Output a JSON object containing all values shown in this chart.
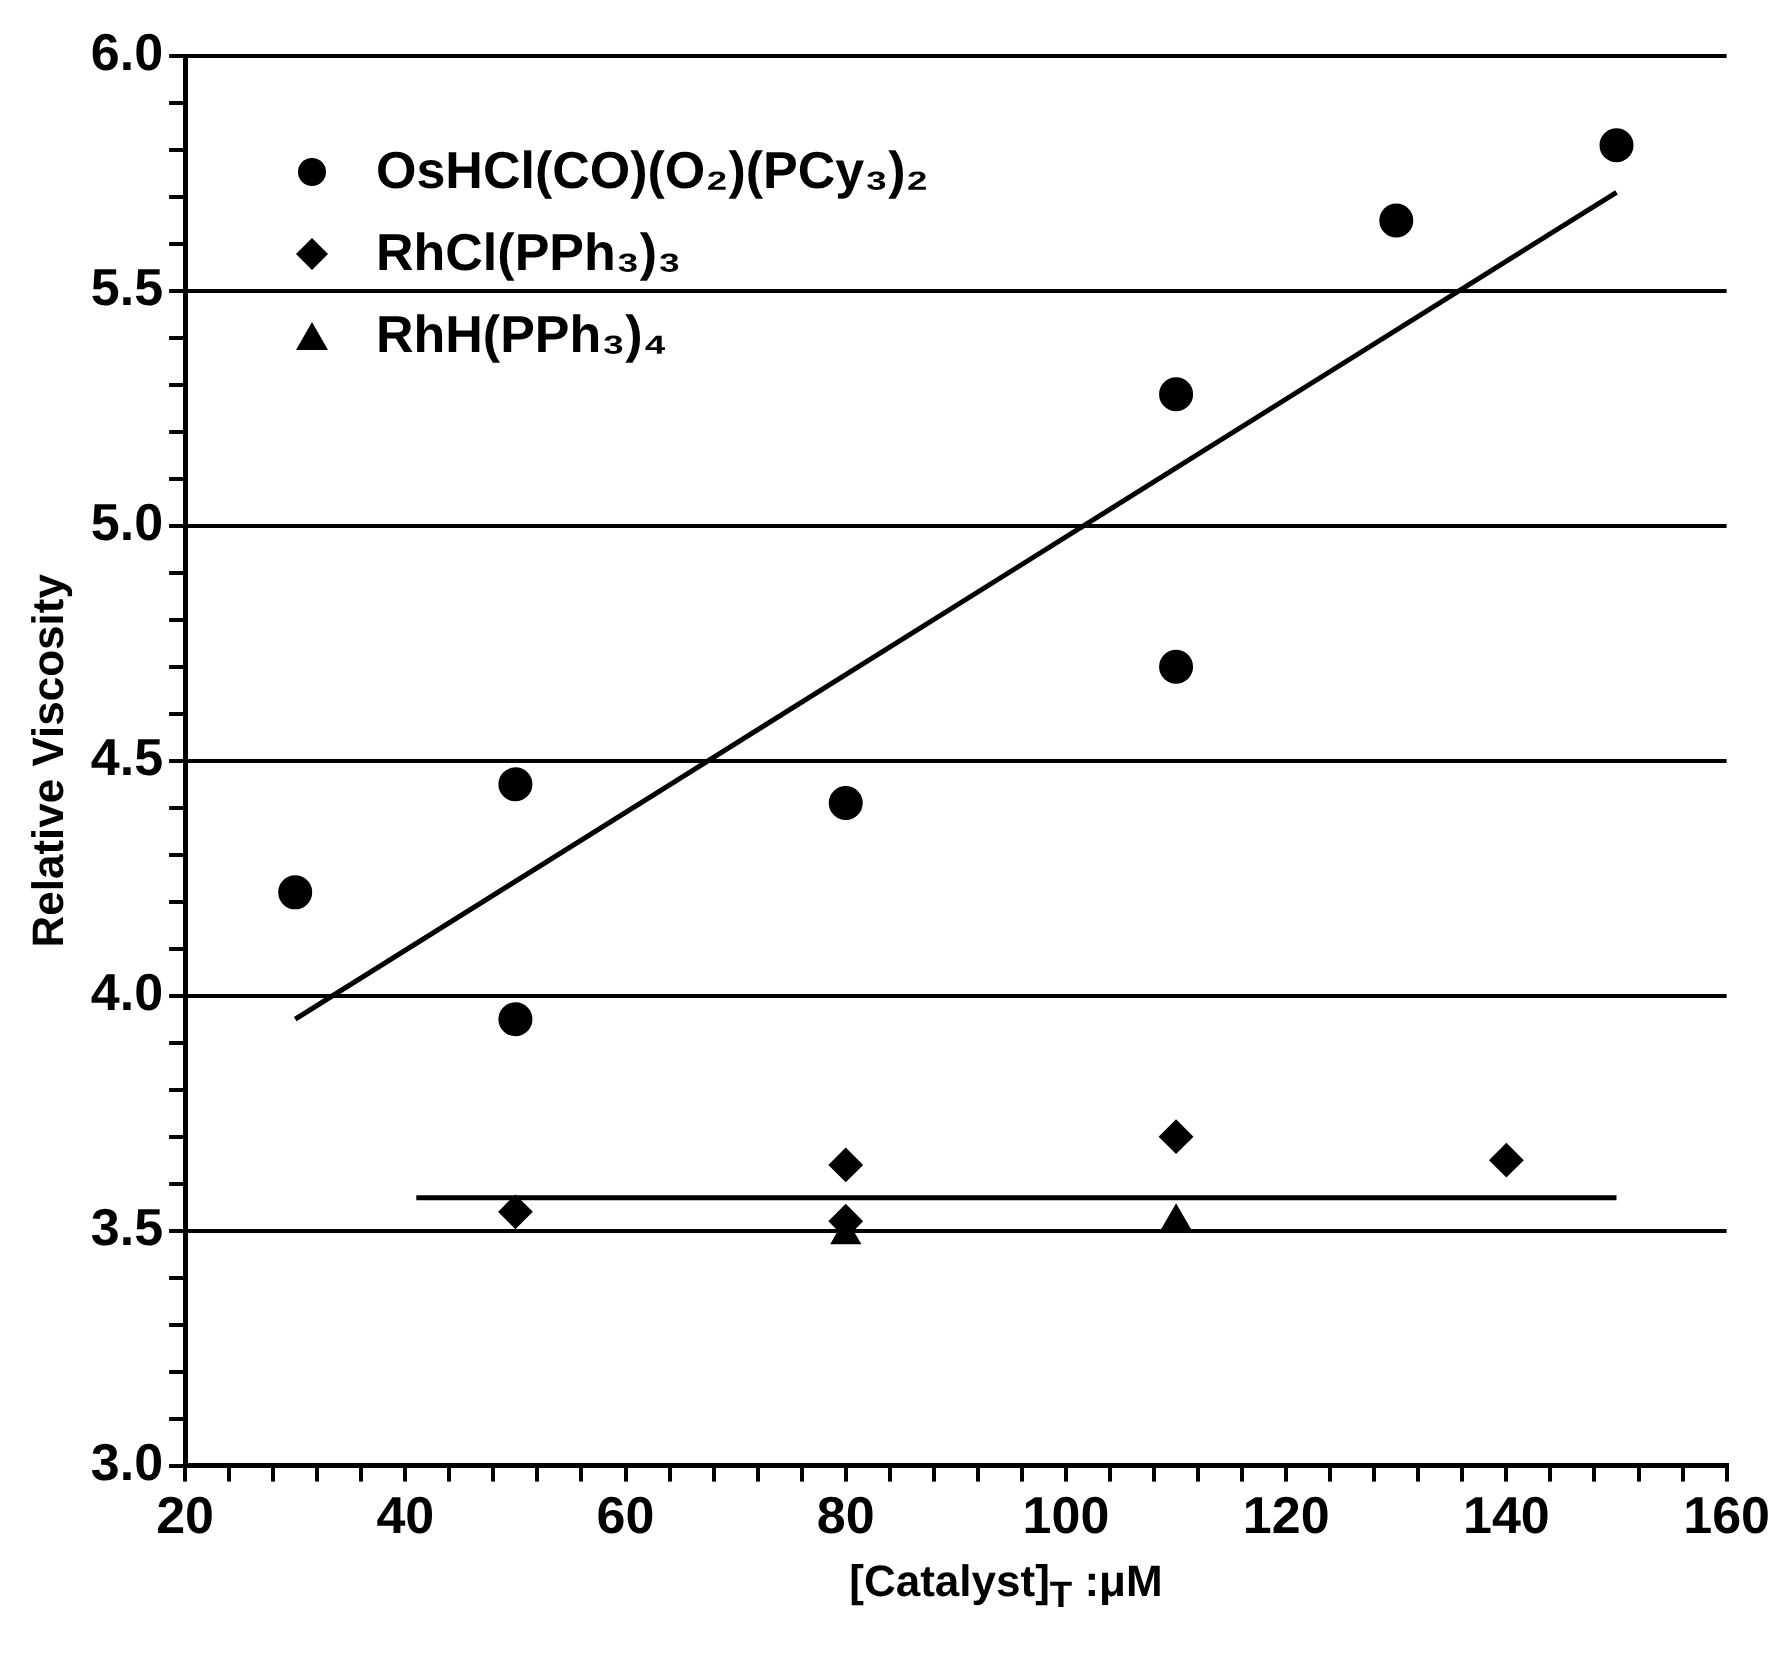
{
  "chart_data": {
    "type": "scatter",
    "xlabel": "[Catalyst]$_{T}$ :μM",
    "ylabel": "Relative Viscosity",
    "xlim": [
      20,
      160
    ],
    "ylim": [
      3.0,
      6.0
    ],
    "xticks": [
      20,
      {
        "value": 24,
        "label": null
      },
      {
        "value": 28,
        "label": null
      },
      {
        "value": 32,
        "label": null
      },
      {
        "value": 36,
        "label": null
      },
      40,
      {
        "value": 44,
        "label": null
      },
      {
        "value": 48,
        "label": null
      },
      {
        "value": 52,
        "label": null
      },
      {
        "value": 56,
        "label": null
      },
      60,
      {
        "value": 64,
        "label": null
      },
      {
        "value": 68,
        "label": null
      },
      {
        "value": 72,
        "label": null
      },
      {
        "value": 76,
        "label": null
      },
      80,
      {
        "value": 84,
        "label": null
      },
      {
        "value": 88,
        "label": null
      },
      {
        "value": 92,
        "label": null
      },
      {
        "value": 96,
        "label": null
      },
      100,
      {
        "value": 104,
        "label": null
      },
      {
        "value": 108,
        "label": null
      },
      {
        "value": 112,
        "label": null
      },
      {
        "value": 116,
        "label": null
      },
      120,
      {
        "value": 124,
        "label": null
      },
      {
        "value": 128,
        "label": null
      },
      {
        "value": 132,
        "label": null
      },
      {
        "value": 136,
        "label": null
      },
      140,
      {
        "value": 144,
        "label": null
      },
      {
        "value": 148,
        "label": null
      },
      {
        "value": 152,
        "label": null
      },
      {
        "value": 156,
        "label": null
      },
      160
    ],
    "yticks": [
      {
        "value": 3.0,
        "label": "3.0"
      },
      {
        "value": 3.1,
        "label": null
      },
      {
        "value": 3.2,
        "label": null
      },
      {
        "value": 3.3,
        "label": null
      },
      {
        "value": 3.4,
        "label": null
      },
      3.5,
      {
        "value": 3.6,
        "label": null
      },
      {
        "value": 3.7,
        "label": null
      },
      {
        "value": 3.8,
        "label": null
      },
      {
        "value": 3.9,
        "label": null
      },
      {
        "value": 4.0,
        "label": "4.0"
      },
      {
        "value": 4.1,
        "label": null
      },
      {
        "value": 4.2,
        "label": null
      },
      {
        "value": 4.3,
        "label": null
      },
      {
        "value": 4.4,
        "label": null
      },
      4.5,
      {
        "value": 4.6,
        "label": null
      },
      {
        "value": 4.7,
        "label": null
      },
      {
        "value": 4.8,
        "label": null
      },
      {
        "value": 4.9,
        "label": null
      },
      {
        "value": 5.0,
        "label": "5.0"
      },
      {
        "value": 5.1,
        "label": null
      },
      {
        "value": 5.2,
        "label": null
      },
      {
        "value": 5.3,
        "label": null
      },
      {
        "value": 5.4,
        "label": null
      },
      5.5,
      {
        "value": 5.6,
        "label": null
      },
      {
        "value": 5.7,
        "label": null
      },
      {
        "value": 5.8,
        "label": null
      },
      {
        "value": 5.9,
        "label": null
      },
      {
        "value": 6.0,
        "label": "6.0"
      }
    ],
    "grid": "y",
    "legend": "top left",
    "series": [
      {
        "name": "OsHCl(CO)(O₂)(PCy₃)₂",
        "color": "#000000",
        "marker": "circle",
        "x": [
          30,
          50,
          50,
          80,
          110,
          110,
          130,
          150
        ],
        "values": [
          4.22,
          4.45,
          3.95,
          4.41,
          5.28,
          4.7,
          5.65,
          5.81
        ]
      },
      {
        "name": "RhCl(PPh₃)₃",
        "color": "#000000",
        "marker": "diamond",
        "x": [
          50,
          80,
          80,
          110,
          140
        ],
        "values": [
          3.54,
          3.64,
          3.52,
          3.7,
          3.65
        ]
      },
      {
        "name": "RhH(PPh₃)₄",
        "color": "#000000",
        "marker": "triangle",
        "x": [
          80,
          110
        ],
        "values": [
          3.49,
          3.52
        ]
      },
      {
        "type": "line",
        "color": "#000000",
        "marker": "none",
        "line_style": "solid",
        "x": [
          30,
          150
        ],
        "values": [
          3.95,
          5.71
        ]
      },
      {
        "type": "line",
        "color": "#000000",
        "marker": "none",
        "line_style": "solid",
        "x": [
          41,
          150
        ],
        "values": [
          3.57,
          3.57
        ]
      }
    ]
  }
}
